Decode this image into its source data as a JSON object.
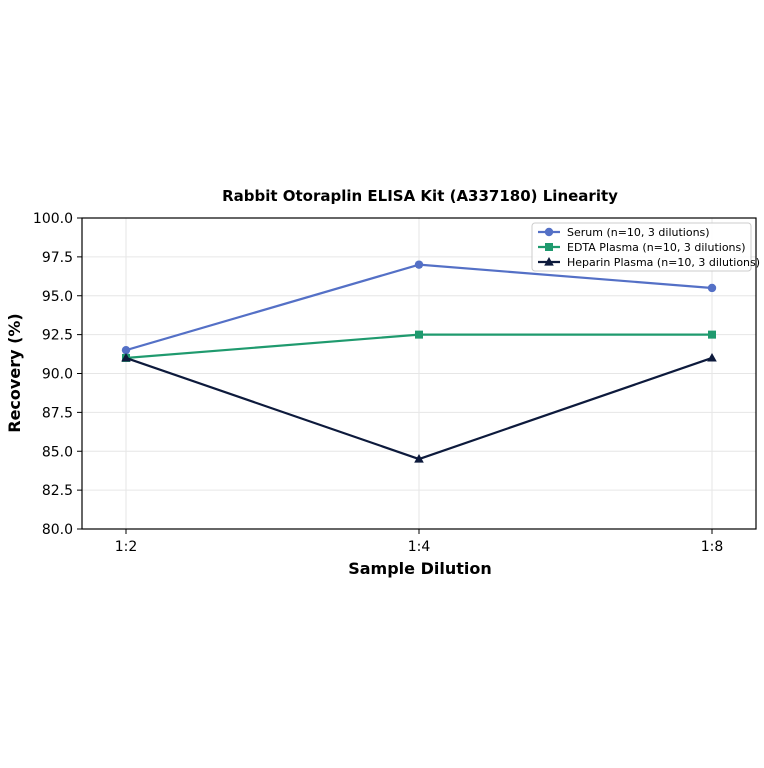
{
  "chart_data": {
    "type": "line",
    "title": "Rabbit Otoraplin ELISA Kit (A337180) Linearity",
    "xlabel": "Sample Dilution",
    "ylabel": "Recovery (%)",
    "categories": [
      "1:2",
      "1:4",
      "1:8"
    ],
    "ylim": [
      80.0,
      100.0
    ],
    "yticks": [
      "80.0",
      "82.5",
      "85.0",
      "87.5",
      "90.0",
      "92.5",
      "95.0",
      "97.5",
      "100.0"
    ],
    "grid": true,
    "legend_position": "top-right",
    "series": [
      {
        "name": "Serum (n=10, 3 dilutions)",
        "values": [
          91.5,
          97.0,
          95.5
        ],
        "color": "#5470c6",
        "marker": "circle"
      },
      {
        "name": "EDTA Plasma (n=10, 3 dilutions)",
        "values": [
          91.0,
          92.5,
          92.5
        ],
        "color": "#1f9a6e",
        "marker": "square"
      },
      {
        "name": "Heparin Plasma (n=10, 3 dilutions)",
        "values": [
          91.0,
          84.5,
          91.0
        ],
        "color": "#0d1a3c",
        "marker": "triangle"
      }
    ]
  }
}
